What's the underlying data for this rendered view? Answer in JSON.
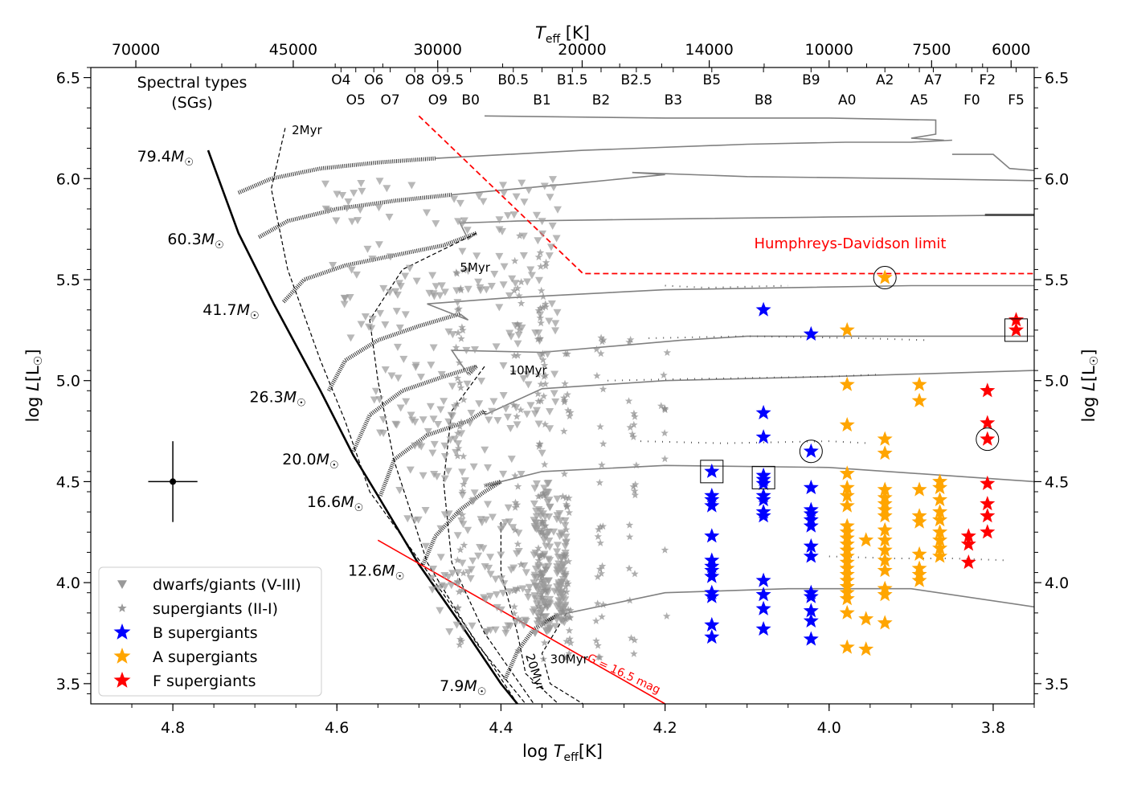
{
  "chart_data": {
    "type": "scatter",
    "title": "",
    "xlabel_prefix": "log ",
    "xlabel_T": "T",
    "xlabel_sub": "eff",
    "xlabel_suffix": "[K]",
    "ylabel_prefix": "log ",
    "ylabel_L": "L",
    "ylabel_bracket": "[L",
    "ylabel_sun": "☉",
    "ylabel_close": "]",
    "top_xlabel_T": "T",
    "top_xlabel_sub": "eff",
    "top_xlabel_unit": " [K]",
    "xlim": [
      4.9,
      3.75
    ],
    "ylim": [
      3.4,
      6.55
    ],
    "x_ticks": [
      "4.8",
      "4.6",
      "4.4",
      "4.2",
      "4.0",
      "3.8"
    ],
    "x_tick_values": [
      4.8,
      4.6,
      4.4,
      4.2,
      4.0,
      3.8
    ],
    "y_ticks": [
      "3.5",
      "4.0",
      "4.5",
      "5.0",
      "5.5",
      "6.0",
      "6.5"
    ],
    "y_tick_values": [
      3.5,
      4.0,
      4.5,
      5.0,
      5.5,
      6.0,
      6.5
    ],
    "top_ticks": [
      {
        "label": "70000",
        "teff": 70000
      },
      {
        "label": "45000",
        "teff": 45000
      },
      {
        "label": "30000",
        "teff": 30000
      },
      {
        "label": "20000",
        "teff": 20000
      },
      {
        "label": "14000",
        "teff": 14000
      },
      {
        "label": "10000",
        "teff": 10000
      },
      {
        "label": "7500",
        "teff": 7500
      },
      {
        "label": "6000",
        "teff": 6000
      }
    ],
    "spectral_types_label_1": "Spectral types",
    "spectral_types_label_2": "(SGs)",
    "spectral_types_row1": [
      {
        "label": "O4",
        "x": 4.595
      },
      {
        "label": "O6",
        "x": 4.555
      },
      {
        "label": "O8",
        "x": 4.505
      },
      {
        "label": "O9.5",
        "x": 4.465
      },
      {
        "label": "B0.5",
        "x": 4.385
      },
      {
        "label": "B1.5",
        "x": 4.313
      },
      {
        "label": "B2.5",
        "x": 4.235
      },
      {
        "label": "B5",
        "x": 4.143
      },
      {
        "label": "B9",
        "x": 4.022
      },
      {
        "label": "A2",
        "x": 3.932
      },
      {
        "label": "A7",
        "x": 3.873
      },
      {
        "label": "F2",
        "x": 3.807
      }
    ],
    "spectral_types_row2": [
      {
        "label": "O5",
        "x": 4.577
      },
      {
        "label": "O7",
        "x": 4.535
      },
      {
        "label": "O9",
        "x": 4.477
      },
      {
        "label": "B0",
        "x": 4.437
      },
      {
        "label": "B1",
        "x": 4.35
      },
      {
        "label": "B2",
        "x": 4.278
      },
      {
        "label": "B3",
        "x": 4.19
      },
      {
        "label": "B8",
        "x": 4.08
      },
      {
        "label": "A0",
        "x": 3.978
      },
      {
        "label": "A5",
        "x": 3.89
      },
      {
        "label": "F0",
        "x": 3.826
      },
      {
        "label": "F5",
        "x": 3.772
      }
    ],
    "legend": [
      {
        "label": "dwarfs/giants (V-III)",
        "marker": "triangle",
        "color": "#999999"
      },
      {
        "label": "supergiants (II-I)",
        "marker": "star-small",
        "color": "#999999"
      },
      {
        "label": "B supergiants",
        "marker": "star",
        "color": "#0000ff"
      },
      {
        "label": "A supergiants",
        "marker": "star",
        "color": "#ffa500"
      },
      {
        "label": "F supergiants",
        "marker": "star",
        "color": "#ff0000"
      }
    ],
    "track_masses": [
      {
        "label": "79.4",
        "x": 4.757,
        "y": 6.14
      },
      {
        "label": "60.3",
        "x": 4.72,
        "y": 5.73
      },
      {
        "label": "41.7",
        "x": 4.677,
        "y": 5.38
      },
      {
        "label": "26.3",
        "x": 4.62,
        "y": 4.95
      },
      {
        "label": "20.0",
        "x": 4.58,
        "y": 4.64
      },
      {
        "label": "16.6",
        "x": 4.55,
        "y": 4.43
      },
      {
        "label": "12.6",
        "x": 4.5,
        "y": 4.09
      },
      {
        "label": "7.9",
        "x": 4.4,
        "y": 3.52
      }
    ],
    "mass_unit": "M",
    "mass_sun": "☉",
    "isochrones": [
      {
        "label": "2Myr",
        "x": 4.655,
        "y": 6.22
      },
      {
        "label": "5Myr",
        "x": 4.45,
        "y": 5.54
      },
      {
        "label": "10Myr",
        "x": 4.39,
        "y": 5.03
      },
      {
        "label": "20Myr",
        "x": 4.37,
        "y": 3.64
      },
      {
        "label": "30Myr",
        "x": 4.34,
        "y": 3.6
      }
    ],
    "hd_limit_label": "Humphreys-Davidson limit",
    "hd_limit_line": [
      [
        4.5,
        6.31
      ],
      [
        4.3,
        5.53
      ],
      [
        3.75,
        5.53
      ]
    ],
    "g_limit_label": "G = 16.5 mag",
    "g_limit_line": [
      [
        4.55,
        4.21
      ],
      [
        4.2,
        3.4
      ]
    ],
    "error_bar": {
      "x": 4.8,
      "y": 4.5,
      "dx": 0.03,
      "dy": 0.2
    },
    "b_supergiants": [
      [
        4.143,
        4.55
      ],
      [
        4.143,
        4.43
      ],
      [
        4.143,
        4.41
      ],
      [
        4.143,
        4.38
      ],
      [
        4.143,
        4.23
      ],
      [
        4.143,
        4.11
      ],
      [
        4.143,
        4.08
      ],
      [
        4.143,
        4.06
      ],
      [
        4.143,
        4.03
      ],
      [
        4.143,
        3.95
      ],
      [
        4.143,
        3.93
      ],
      [
        4.143,
        3.79
      ],
      [
        4.143,
        3.73
      ],
      [
        4.08,
        5.35
      ],
      [
        4.08,
        4.84
      ],
      [
        4.08,
        4.72
      ],
      [
        4.08,
        4.53
      ],
      [
        4.08,
        4.51
      ],
      [
        4.08,
        4.49
      ],
      [
        4.08,
        4.43
      ],
      [
        4.08,
        4.41
      ],
      [
        4.08,
        4.35
      ],
      [
        4.08,
        4.33
      ],
      [
        4.08,
        4.01
      ],
      [
        4.08,
        3.94
      ],
      [
        4.08,
        3.87
      ],
      [
        4.08,
        3.77
      ],
      [
        4.022,
        5.23
      ],
      [
        4.022,
        4.65
      ],
      [
        4.022,
        4.47
      ],
      [
        4.022,
        4.36
      ],
      [
        4.022,
        4.34
      ],
      [
        4.022,
        4.31
      ],
      [
        4.022,
        4.28
      ],
      [
        4.022,
        4.18
      ],
      [
        4.022,
        4.13
      ],
      [
        4.022,
        3.95
      ],
      [
        4.022,
        3.93
      ],
      [
        4.022,
        3.86
      ],
      [
        4.022,
        3.81
      ],
      [
        4.022,
        3.72
      ]
    ],
    "a_supergiants": [
      [
        3.932,
        5.51
      ],
      [
        3.978,
        5.25
      ],
      [
        3.978,
        4.98
      ],
      [
        3.978,
        4.78
      ],
      [
        3.978,
        4.54
      ],
      [
        3.978,
        4.47
      ],
      [
        3.978,
        4.43
      ],
      [
        3.978,
        4.38
      ],
      [
        3.978,
        4.28
      ],
      [
        3.978,
        4.25
      ],
      [
        3.978,
        4.22
      ],
      [
        3.978,
        4.19
      ],
      [
        3.978,
        4.16
      ],
      [
        3.978,
        4.13
      ],
      [
        3.978,
        4.1
      ],
      [
        3.978,
        4.07
      ],
      [
        3.978,
        4.04
      ],
      [
        3.978,
        4.01
      ],
      [
        3.978,
        3.98
      ],
      [
        3.978,
        3.95
      ],
      [
        3.978,
        3.92
      ],
      [
        3.978,
        3.85
      ],
      [
        3.978,
        3.68
      ],
      [
        3.955,
        4.21
      ],
      [
        3.955,
        3.82
      ],
      [
        3.955,
        3.67
      ],
      [
        3.932,
        4.71
      ],
      [
        3.932,
        4.64
      ],
      [
        3.932,
        4.46
      ],
      [
        3.932,
        4.42
      ],
      [
        3.932,
        4.39
      ],
      [
        3.932,
        4.36
      ],
      [
        3.932,
        4.33
      ],
      [
        3.932,
        4.26
      ],
      [
        3.932,
        4.21
      ],
      [
        3.932,
        4.16
      ],
      [
        3.932,
        4.11
      ],
      [
        3.932,
        4.06
      ],
      [
        3.932,
        3.97
      ],
      [
        3.932,
        3.94
      ],
      [
        3.932,
        3.8
      ],
      [
        3.89,
        4.98
      ],
      [
        3.89,
        4.9
      ],
      [
        3.89,
        4.46
      ],
      [
        3.89,
        4.33
      ],
      [
        3.89,
        4.3
      ],
      [
        3.89,
        4.14
      ],
      [
        3.89,
        4.07
      ],
      [
        3.89,
        4.04
      ],
      [
        3.89,
        4.01
      ],
      [
        3.865,
        4.5
      ],
      [
        3.865,
        4.47
      ],
      [
        3.865,
        4.41
      ],
      [
        3.865,
        4.35
      ],
      [
        3.865,
        4.31
      ],
      [
        3.865,
        4.25
      ],
      [
        3.865,
        4.21
      ],
      [
        3.865,
        4.17
      ],
      [
        3.865,
        4.13
      ]
    ],
    "f_supergiants": [
      [
        3.772,
        5.3
      ],
      [
        3.772,
        5.25
      ],
      [
        3.807,
        4.95
      ],
      [
        3.807,
        4.79
      ],
      [
        3.807,
        4.71
      ],
      [
        3.807,
        4.49
      ],
      [
        3.807,
        4.39
      ],
      [
        3.807,
        4.33
      ],
      [
        3.807,
        4.25
      ],
      [
        3.83,
        4.23
      ],
      [
        3.83,
        4.19
      ],
      [
        3.83,
        4.1
      ]
    ],
    "circled": [
      [
        3.932,
        5.51
      ],
      [
        4.022,
        4.65
      ],
      [
        3.807,
        4.71
      ]
    ],
    "boxed": [
      [
        4.143,
        4.55
      ],
      [
        4.08,
        4.52
      ],
      [
        3.772,
        5.25
      ]
    ]
  }
}
